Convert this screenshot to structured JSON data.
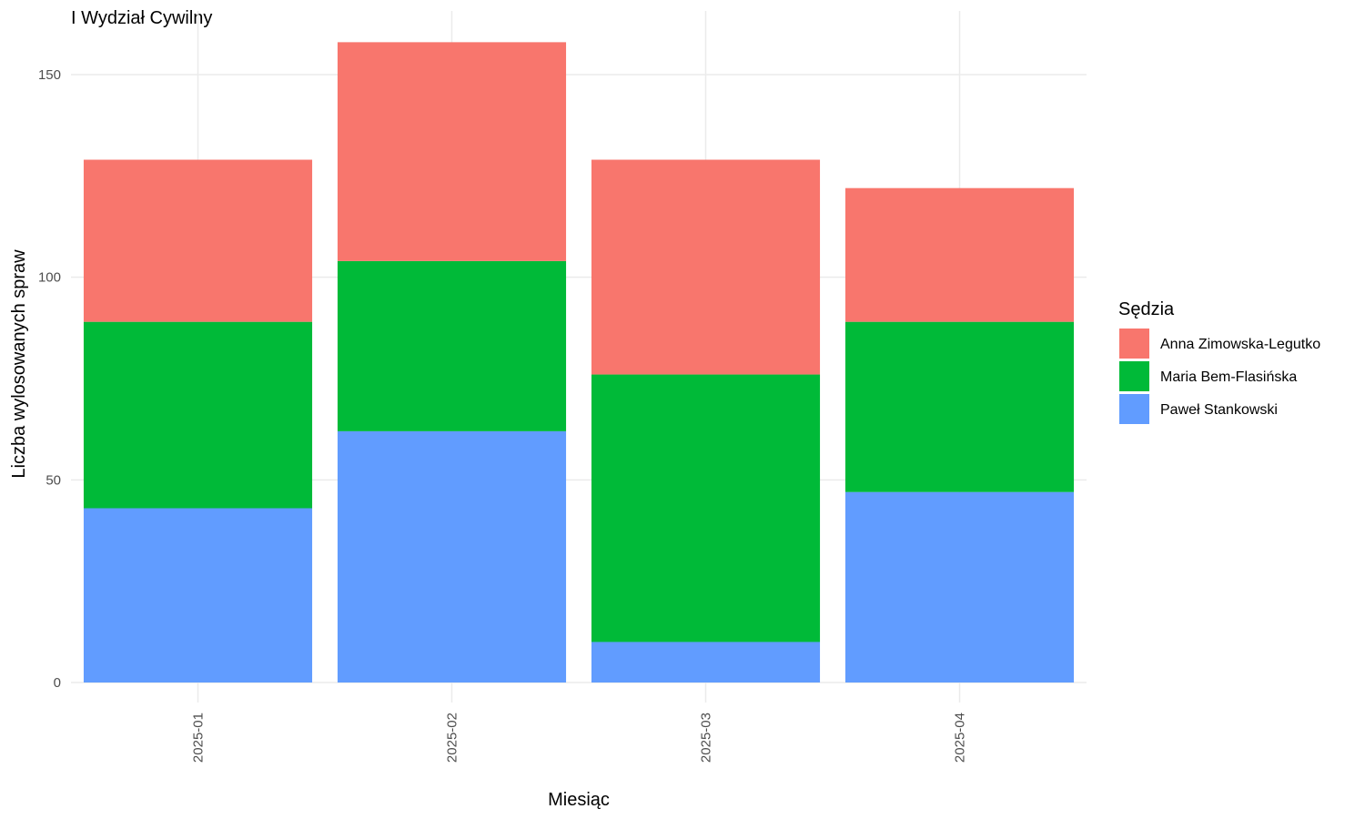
{
  "chart_data": {
    "type": "bar",
    "stacked": true,
    "title": "I Wydział Cywilny",
    "xlabel": "Miesiąc",
    "ylabel": "Liczba wylosowanych spraw",
    "categories": [
      "2025-01",
      "2025-02",
      "2025-03",
      "2025-04"
    ],
    "ylim": [
      0,
      160
    ],
    "yticks": [
      0,
      50,
      100,
      150
    ],
    "grid": true,
    "legend": {
      "title": "Sędzia",
      "position": "right"
    },
    "series": [
      {
        "name": "Paweł Stankowski",
        "color": "#619CFF",
        "values": [
          43,
          62,
          10,
          47
        ]
      },
      {
        "name": "Maria Bem-Flasińska",
        "color": "#00BA38",
        "values": [
          46,
          42,
          66,
          42
        ]
      },
      {
        "name": "Anna Zimowska-Legutko",
        "color": "#F8766D",
        "values": [
          40,
          54,
          53,
          33
        ]
      }
    ],
    "legend_order": [
      "Anna Zimowska-Legutko",
      "Maria Bem-Flasińska",
      "Paweł Stankowski"
    ]
  }
}
